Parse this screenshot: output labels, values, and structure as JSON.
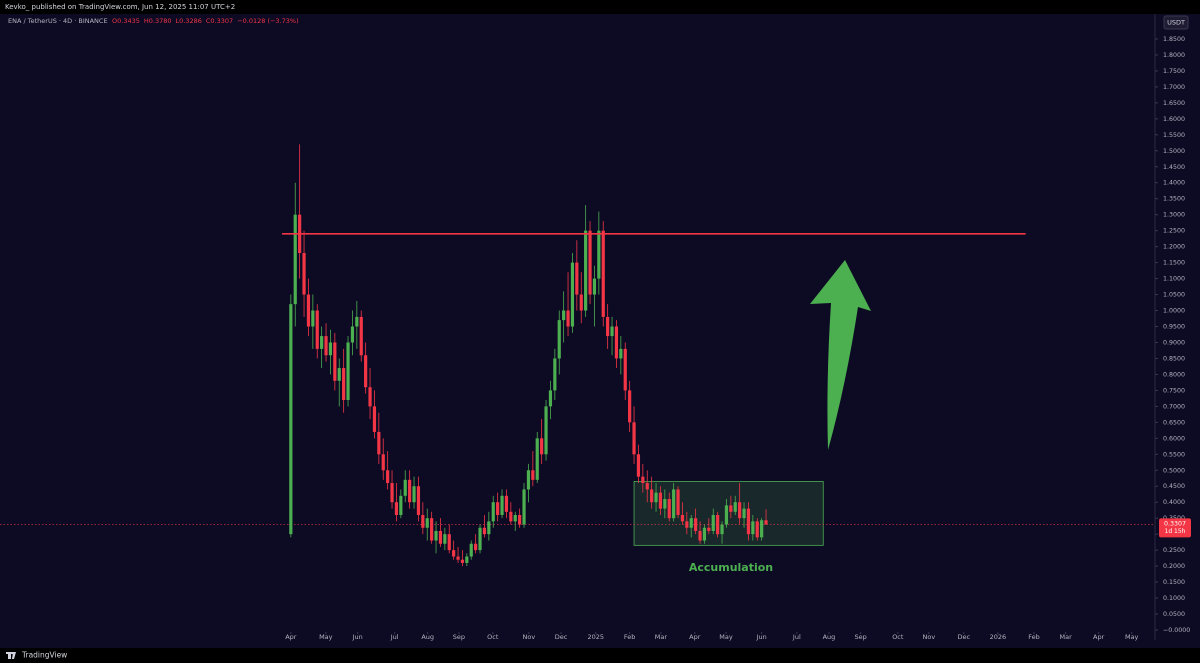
{
  "chart_data": {
    "type": "candlestick",
    "publisher": "Kevko_ published on TradingView.com, Jun 12, 2025 11:07 UTC+2",
    "symbol": "ENA / TetherUS · 4D · BINANCE",
    "ohlc_header": [
      "O0.3435",
      "H0.3780",
      "L0.3286",
      "C0.3307",
      "−0.0128 (−3.73%)"
    ],
    "currency": "USDT",
    "annotation": "Accumulation",
    "brand": "TradingView",
    "up_color": "#4caf50",
    "down_color": "#f23645",
    "xlim": [
      -66.1,
      196.4
    ],
    "ylim": [
      0,
      1.9
    ],
    "last_price": 0.3307,
    "countdown": "1d 15h",
    "resistance": {
      "value": 1.24,
      "from": -2,
      "to": 167
    },
    "zone": {
      "x": [
        78,
        121
      ],
      "y": [
        0.265,
        0.465
      ]
    },
    "xticks": [
      {
        "value": 0,
        "label": "Apr"
      },
      {
        "value": 7.95,
        "label": "May"
      },
      {
        "value": 15.2,
        "label": "Jun"
      },
      {
        "value": 23.6,
        "label": "Jul"
      },
      {
        "value": 31.1,
        "label": "Aug"
      },
      {
        "value": 38.2,
        "label": "Sep"
      },
      {
        "value": 45.9,
        "label": "Oct"
      },
      {
        "value": 54.1,
        "label": "Nov"
      },
      {
        "value": 61.4,
        "label": "Dec"
      },
      {
        "value": 69.3,
        "label": "2025"
      },
      {
        "value": 77.0,
        "label": "Feb"
      },
      {
        "value": 84.1,
        "label": "Mar"
      },
      {
        "value": 91.8,
        "label": "Apr"
      },
      {
        "value": 98.9,
        "label": "May"
      },
      {
        "value": 107.0,
        "label": "Jun"
      },
      {
        "value": 115.0,
        "label": "Jul"
      },
      {
        "value": 122.3,
        "label": "Aug"
      },
      {
        "value": 129.5,
        "label": "Sep"
      },
      {
        "value": 137.95,
        "label": "Oct"
      },
      {
        "value": 145.0,
        "label": "Nov"
      },
      {
        "value": 152.95,
        "label": "Dec"
      },
      {
        "value": 160.7,
        "label": "2026"
      },
      {
        "value": 168.9,
        "label": "Feb"
      },
      {
        "value": 176.1,
        "label": "Mar"
      },
      {
        "value": 183.6,
        "label": "Apr"
      },
      {
        "value": 191.1,
        "label": "May"
      }
    ],
    "yticks": [
      {
        "value": 0,
        "label": "−0.0000"
      },
      {
        "value": 0.05,
        "label": "0.0500"
      },
      {
        "value": 0.1,
        "label": "0.1000"
      },
      {
        "value": 0.15,
        "label": "0.1500"
      },
      {
        "value": 0.2,
        "label": "0.2000"
      },
      {
        "value": 0.25,
        "label": "0.2500"
      },
      {
        "value": 0.3,
        "label": "0.3000"
      },
      {
        "value": 0.35,
        "label": "0.3500"
      },
      {
        "value": 0.4,
        "label": "0.4000"
      },
      {
        "value": 0.45,
        "label": "0.4500"
      },
      {
        "value": 0.5,
        "label": "0.5000"
      },
      {
        "value": 0.55,
        "label": "0.5500"
      },
      {
        "value": 0.6,
        "label": "0.6000"
      },
      {
        "value": 0.65,
        "label": "0.6500"
      },
      {
        "value": 0.7,
        "label": "0.7000"
      },
      {
        "value": 0.75,
        "label": "0.7500"
      },
      {
        "value": 0.8,
        "label": "0.8000"
      },
      {
        "value": 0.85,
        "label": "0.8500"
      },
      {
        "value": 0.9,
        "label": "0.9000"
      },
      {
        "value": 0.95,
        "label": "0.9500"
      },
      {
        "value": 1.0,
        "label": "1.0000"
      },
      {
        "value": 1.05,
        "label": "1.0500"
      },
      {
        "value": 1.1,
        "label": "1.1000"
      },
      {
        "value": 1.15,
        "label": "1.1500"
      },
      {
        "value": 1.2,
        "label": "1.2000"
      },
      {
        "value": 1.25,
        "label": "1.2500"
      },
      {
        "value": 1.3,
        "label": "1.3000"
      },
      {
        "value": 1.35,
        "label": "1.3500"
      },
      {
        "value": 1.4,
        "label": "1.4000"
      },
      {
        "value": 1.45,
        "label": "1.4500"
      },
      {
        "value": 1.5,
        "label": "1.5000"
      },
      {
        "value": 1.55,
        "label": "1.5500"
      },
      {
        "value": 1.6,
        "label": "1.6000"
      },
      {
        "value": 1.65,
        "label": "1.6500"
      },
      {
        "value": 1.7,
        "label": "1.7000"
      },
      {
        "value": 1.75,
        "label": "1.7500"
      },
      {
        "value": 1.8,
        "label": "1.8000"
      },
      {
        "value": 1.85,
        "label": "1.8500"
      }
    ],
    "candles": [
      [
        0.3,
        1.05,
        0.29,
        1.02
      ],
      [
        1.02,
        1.4,
        0.95,
        1.3
      ],
      [
        1.3,
        1.52,
        1.1,
        1.18
      ],
      [
        1.18,
        1.25,
        0.98,
        1.05
      ],
      [
        1.05,
        1.1,
        0.92,
        0.95
      ],
      [
        0.95,
        1.05,
        0.88,
        1.0
      ],
      [
        1.0,
        1.02,
        0.85,
        0.88
      ],
      [
        0.88,
        0.95,
        0.82,
        0.92
      ],
      [
        0.92,
        0.96,
        0.84,
        0.86
      ],
      [
        0.86,
        0.94,
        0.8,
        0.9
      ],
      [
        0.9,
        0.93,
        0.75,
        0.78
      ],
      [
        0.78,
        0.85,
        0.7,
        0.82
      ],
      [
        0.82,
        0.88,
        0.68,
        0.72
      ],
      [
        0.72,
        0.92,
        0.7,
        0.9
      ],
      [
        0.9,
        1.0,
        0.86,
        0.95
      ],
      [
        0.95,
        1.03,
        0.88,
        0.98
      ],
      [
        0.98,
        1.0,
        0.84,
        0.86
      ],
      [
        0.86,
        0.9,
        0.74,
        0.76
      ],
      [
        0.76,
        0.82,
        0.66,
        0.7
      ],
      [
        0.7,
        0.75,
        0.6,
        0.62
      ],
      [
        0.62,
        0.68,
        0.52,
        0.55
      ],
      [
        0.55,
        0.6,
        0.47,
        0.5
      ],
      [
        0.5,
        0.56,
        0.44,
        0.46
      ],
      [
        0.46,
        0.5,
        0.38,
        0.4
      ],
      [
        0.4,
        0.46,
        0.34,
        0.36
      ],
      [
        0.36,
        0.44,
        0.35,
        0.42
      ],
      [
        0.42,
        0.5,
        0.4,
        0.47
      ],
      [
        0.47,
        0.5,
        0.38,
        0.4
      ],
      [
        0.4,
        0.48,
        0.38,
        0.45
      ],
      [
        0.45,
        0.48,
        0.34,
        0.36
      ],
      [
        0.36,
        0.4,
        0.3,
        0.32
      ],
      [
        0.32,
        0.38,
        0.28,
        0.35
      ],
      [
        0.35,
        0.37,
        0.27,
        0.28
      ],
      [
        0.28,
        0.34,
        0.24,
        0.31
      ],
      [
        0.31,
        0.35,
        0.26,
        0.27
      ],
      [
        0.27,
        0.32,
        0.25,
        0.3
      ],
      [
        0.3,
        0.33,
        0.24,
        0.25
      ],
      [
        0.25,
        0.28,
        0.22,
        0.23
      ],
      [
        0.23,
        0.26,
        0.21,
        0.22
      ],
      [
        0.22,
        0.25,
        0.2,
        0.21
      ],
      [
        0.21,
        0.24,
        0.2,
        0.23
      ],
      [
        0.23,
        0.28,
        0.22,
        0.27
      ],
      [
        0.27,
        0.3,
        0.24,
        0.25
      ],
      [
        0.25,
        0.33,
        0.24,
        0.32
      ],
      [
        0.32,
        0.36,
        0.29,
        0.3
      ],
      [
        0.3,
        0.37,
        0.28,
        0.34
      ],
      [
        0.34,
        0.42,
        0.32,
        0.4
      ],
      [
        0.4,
        0.43,
        0.34,
        0.36
      ],
      [
        0.36,
        0.44,
        0.35,
        0.42
      ],
      [
        0.42,
        0.44,
        0.35,
        0.37
      ],
      [
        0.37,
        0.4,
        0.33,
        0.34
      ],
      [
        0.34,
        0.37,
        0.31,
        0.36
      ],
      [
        0.36,
        0.38,
        0.32,
        0.33
      ],
      [
        0.33,
        0.46,
        0.32,
        0.44
      ],
      [
        0.44,
        0.52,
        0.4,
        0.5
      ],
      [
        0.5,
        0.56,
        0.45,
        0.47
      ],
      [
        0.47,
        0.62,
        0.46,
        0.6
      ],
      [
        0.6,
        0.66,
        0.52,
        0.55
      ],
      [
        0.55,
        0.72,
        0.53,
        0.7
      ],
      [
        0.7,
        0.78,
        0.66,
        0.75
      ],
      [
        0.75,
        0.88,
        0.72,
        0.85
      ],
      [
        0.85,
        1.0,
        0.8,
        0.97
      ],
      [
        0.97,
        1.06,
        0.9,
        1.0
      ],
      [
        1.0,
        1.12,
        0.92,
        0.95
      ],
      [
        0.95,
        1.18,
        0.93,
        1.15
      ],
      [
        1.15,
        1.22,
        1.0,
        1.05
      ],
      [
        1.05,
        1.12,
        0.96,
        1.0
      ],
      [
        1.0,
        1.33,
        0.98,
        1.25
      ],
      [
        1.25,
        1.28,
        1.02,
        1.05
      ],
      [
        1.05,
        1.14,
        0.95,
        1.1
      ],
      [
        1.1,
        1.31,
        1.05,
        1.25
      ],
      [
        1.25,
        1.28,
        0.95,
        0.98
      ],
      [
        0.98,
        1.02,
        0.88,
        0.92
      ],
      [
        0.92,
        0.98,
        0.86,
        0.95
      ],
      [
        0.95,
        0.97,
        0.82,
        0.85
      ],
      [
        0.85,
        0.92,
        0.8,
        0.88
      ],
      [
        0.88,
        0.9,
        0.72,
        0.75
      ],
      [
        0.75,
        0.78,
        0.62,
        0.65
      ],
      [
        0.65,
        0.7,
        0.52,
        0.55
      ],
      [
        0.55,
        0.58,
        0.46,
        0.48
      ],
      [
        0.48,
        0.52,
        0.43,
        0.46
      ],
      [
        0.46,
        0.5,
        0.4,
        0.44
      ],
      [
        0.44,
        0.48,
        0.38,
        0.4
      ],
      [
        0.4,
        0.46,
        0.37,
        0.43
      ],
      [
        0.43,
        0.45,
        0.36,
        0.38
      ],
      [
        0.38,
        0.44,
        0.35,
        0.41
      ],
      [
        0.41,
        0.43,
        0.34,
        0.35
      ],
      [
        0.35,
        0.46,
        0.34,
        0.44
      ],
      [
        0.44,
        0.45,
        0.35,
        0.36
      ],
      [
        0.36,
        0.4,
        0.33,
        0.34
      ],
      [
        0.34,
        0.37,
        0.3,
        0.32
      ],
      [
        0.32,
        0.36,
        0.29,
        0.35
      ],
      [
        0.35,
        0.38,
        0.3,
        0.31
      ],
      [
        0.31,
        0.34,
        0.27,
        0.28
      ],
      [
        0.28,
        0.33,
        0.27,
        0.32
      ],
      [
        0.32,
        0.35,
        0.3,
        0.31
      ],
      [
        0.31,
        0.38,
        0.3,
        0.36
      ],
      [
        0.36,
        0.37,
        0.29,
        0.3
      ],
      [
        0.3,
        0.34,
        0.27,
        0.33
      ],
      [
        0.33,
        0.41,
        0.32,
        0.39
      ],
      [
        0.39,
        0.42,
        0.35,
        0.37
      ],
      [
        0.37,
        0.42,
        0.36,
        0.4
      ],
      [
        0.4,
        0.46,
        0.33,
        0.35
      ],
      [
        0.35,
        0.4,
        0.32,
        0.38
      ],
      [
        0.38,
        0.4,
        0.28,
        0.3
      ],
      [
        0.3,
        0.36,
        0.28,
        0.34
      ],
      [
        0.34,
        0.35,
        0.28,
        0.29
      ],
      [
        0.29,
        0.35,
        0.28,
        0.3435
      ],
      [
        0.3435,
        0.378,
        0.3286,
        0.3307
      ]
    ]
  }
}
